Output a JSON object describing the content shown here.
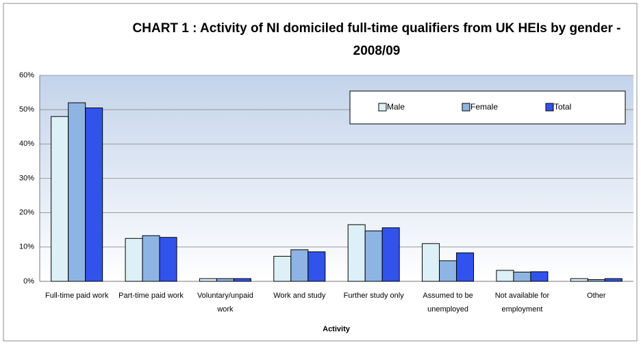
{
  "chart_data": {
    "type": "bar",
    "title": "CHART 1 : Activity of NI domiciled full-time qualifiers from UK HEIs by gender - 2008/09",
    "x_label": "Activity",
    "categories": [
      "Full-time paid work",
      "Part-time paid work",
      "Voluntary/unpaid work",
      "Work and study",
      "Further study only",
      "Assumed to be unemployed",
      "Not available for employment",
      "Other"
    ],
    "series": [
      {
        "name": "Male",
        "color": "#ddf0f8",
        "values": [
          48,
          12.5,
          0.8,
          7.3,
          16.5,
          11,
          3.2,
          0.8
        ]
      },
      {
        "name": "Female",
        "color": "#8eb4e3",
        "values": [
          52,
          13.3,
          0.8,
          9.2,
          14.7,
          6,
          2.7,
          0.5
        ]
      },
      {
        "name": "Total",
        "color": "#3153ec",
        "values": [
          50.5,
          12.8,
          0.8,
          8.6,
          15.6,
          8.3,
          2.8,
          0.8
        ]
      }
    ],
    "ylim": [
      0,
      60
    ],
    "yticks": [
      {
        "value": 0,
        "label": "0%"
      },
      {
        "value": 10,
        "label": "10%"
      },
      {
        "value": 20,
        "label": "20%"
      },
      {
        "value": 30,
        "label": "30%"
      },
      {
        "value": 40,
        "label": "40%"
      },
      {
        "value": 50,
        "label": "50%"
      },
      {
        "value": 60,
        "label": "60%"
      }
    ],
    "grid": true,
    "legend": "top-right"
  }
}
